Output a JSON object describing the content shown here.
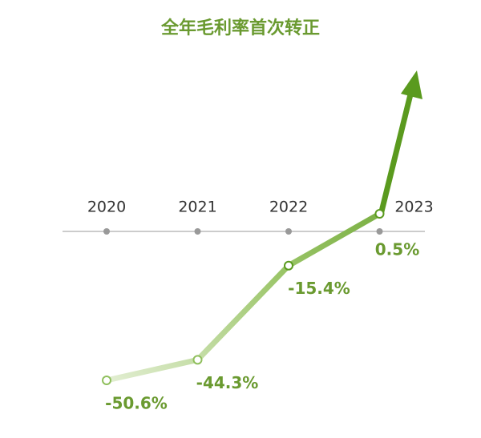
{
  "chart_data": {
    "type": "line",
    "title": "全年毛利率首次转正",
    "categories": [
      "2020",
      "2021",
      "2022",
      "2023"
    ],
    "values": [
      -50.6,
      -44.3,
      -15.4,
      0.5
    ],
    "value_labels": [
      "-50.6%",
      "-44.3%",
      "-15.4%",
      "0.5%"
    ],
    "color": "#5a9a1e"
  }
}
